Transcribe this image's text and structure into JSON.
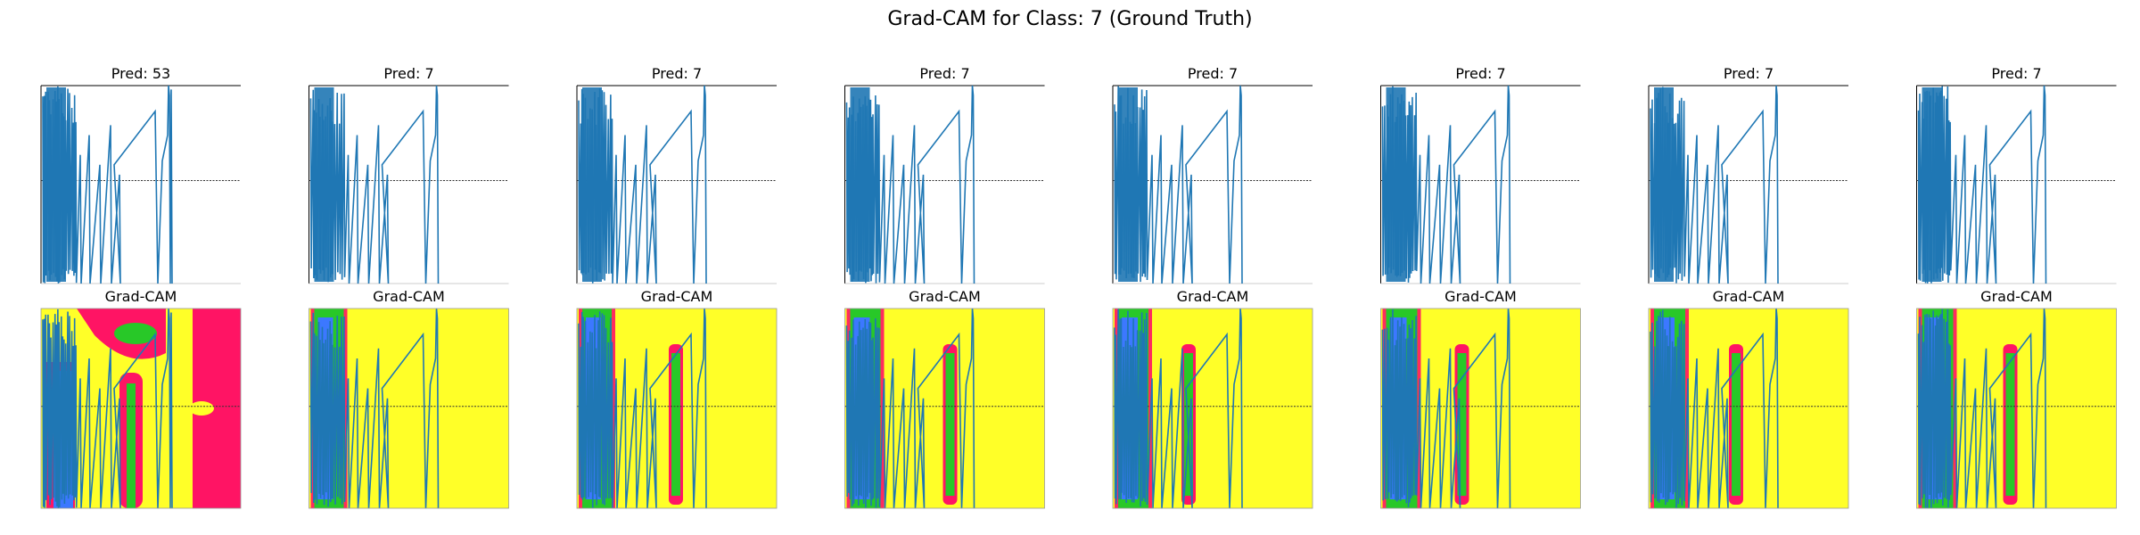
{
  "figure": {
    "title": "Grad-CAM for Class: 7 (Ground Truth)",
    "colors": {
      "signal": "#1f77b4",
      "reference_line": "#333333",
      "heat_background_warm": "#ff1464",
      "heat_background_cool": "#ffff28",
      "heat_mid": "#28c828",
      "heat_low": "#3c78ff"
    }
  },
  "chart_data": [
    {
      "type": "line",
      "title": "Pred: 53",
      "heatmap_title": "Grad-CAM",
      "heatmap_style": "warm",
      "grid": false
    },
    {
      "type": "line",
      "title": "Pred: 7",
      "heatmap_title": "Grad-CAM",
      "heatmap_style": "cool",
      "grid": false
    },
    {
      "type": "line",
      "title": "Pred: 7",
      "heatmap_title": "Grad-CAM",
      "heatmap_style": "cool",
      "grid": false
    },
    {
      "type": "line",
      "title": "Pred: 7",
      "heatmap_title": "Grad-CAM",
      "heatmap_style": "cool",
      "grid": false
    },
    {
      "type": "line",
      "title": "Pred: 7",
      "heatmap_title": "Grad-CAM",
      "heatmap_style": "cool",
      "grid": false
    },
    {
      "type": "line",
      "title": "Pred: 7",
      "heatmap_title": "Grad-CAM",
      "heatmap_style": "cool",
      "grid": false
    },
    {
      "type": "line",
      "title": "Pred: 7",
      "heatmap_title": "Grad-CAM",
      "heatmap_style": "cool",
      "grid": false
    },
    {
      "type": "line",
      "title": "Pred: 7",
      "heatmap_title": "Grad-CAM",
      "heatmap_style": "cool",
      "grid": false
    }
  ]
}
